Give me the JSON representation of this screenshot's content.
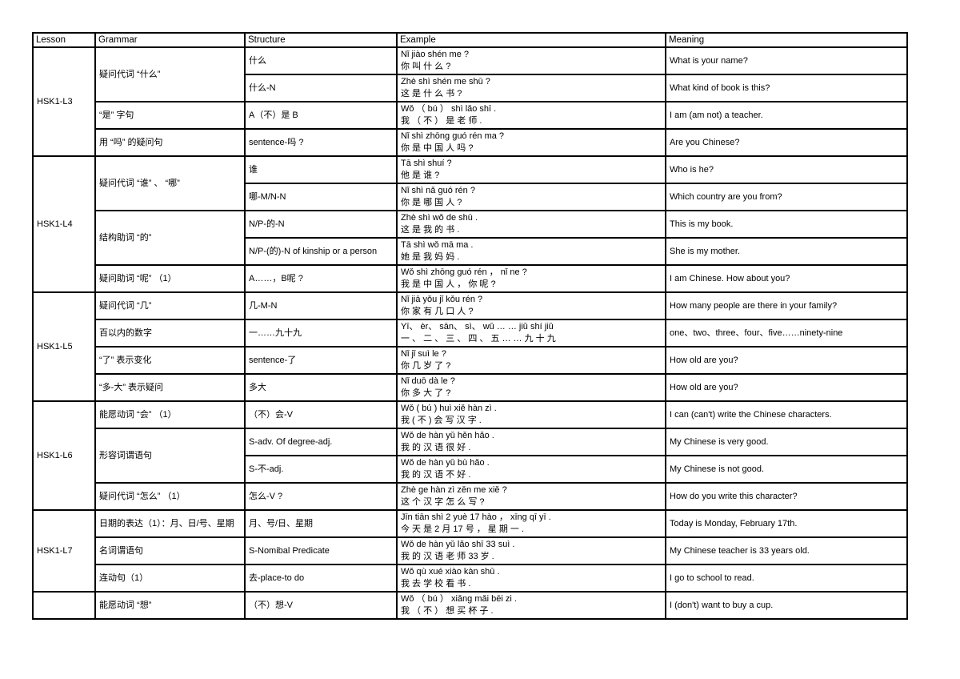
{
  "table": {
    "headers": [
      "Lesson",
      "Grammar",
      "Structure",
      "Example",
      "Meaning"
    ],
    "groups": [
      {
        "lesson": "HSK1-L3",
        "rows": [
          {
            "grammar": "疑问代词 “什么”",
            "grammar_rowspan": 2,
            "structure": "什么",
            "example_pinyin": "Nǐ jiào shén me ?",
            "example_cn": "你 叫  什 么 ?",
            "meaning": "What is your name?"
          },
          {
            "structure": "什么-N",
            "example_pinyin": "Zhè shì shén me shū ?",
            "example_cn": "这 是 什 么 书 ?",
            "meaning": "What kind of book is this?"
          },
          {
            "grammar": "“是” 字句",
            "structure": "A（不）是 B",
            "example_pinyin": "Wǒ （ bú ） shì lǎo shī .",
            "example_cn": "我 （ 不 ） 是 老 师 .",
            "meaning": "I am (am not) a teacher."
          },
          {
            "grammar": "用 “吗” 的疑问句",
            "structure": "sentence-吗 ?",
            "example_pinyin": "Nǐ shì zhōng guó rén ma ?",
            "example_cn": "你 是 中  国 人 吗 ?",
            "meaning": "Are you Chinese?"
          }
        ]
      },
      {
        "lesson": "HSK1-L4",
        "rows": [
          {
            "grammar": "疑问代词 “谁” 、 “哪”",
            "grammar_rowspan": 2,
            "structure": "谁",
            "example_pinyin": "Tā shì shuí ?",
            "example_cn": "他 是 谁  ?",
            "meaning": "Who is he?"
          },
          {
            "structure": "哪-M/N-N",
            "example_pinyin": "Nǐ shì nǎ guó rén ?",
            "example_cn": "你 是 哪 国 人  ?",
            "meaning": "Which country are you from?"
          },
          {
            "grammar": "结构助词 “的”",
            "grammar_rowspan": 2,
            "structure": "N/P-的-N",
            "example_pinyin": "Zhè shì wǒ de shū .",
            "example_cn": "这 是 我 的 书 .",
            "meaning": "This is my book."
          },
          {
            "structure": "N/P-(的)-N of kinship or a person",
            "example_pinyin": "Tā shì wǒ mā ma .",
            "example_cn": "她 是 我 妈 妈 .",
            "meaning": "She is my mother."
          },
          {
            "grammar": "疑问助词 “呢” （1）",
            "structure": "A……，B呢 ?",
            "example_pinyin": "Wǒ shì zhōng guó rén ， nǐ ne ?",
            "example_cn": "我 是 中  国 人 ， 你 呢 ?",
            "meaning": "I am Chinese. How about you?"
          }
        ]
      },
      {
        "lesson": "HSK1-L5",
        "rows": [
          {
            "grammar": "疑问代词 “几”",
            "structure": "几-M-N",
            "example_pinyin": "Nǐ jiā yǒu jǐ kǒu rén ?",
            "example_cn": "你 家 有 几 口 人 ?",
            "meaning": "How many people are there in your family?"
          },
          {
            "grammar": "百以内的数字",
            "structure": "一……九十九",
            "example_pinyin": "Yī、 èr、 sān、 sì、 wǔ … … jiǔ shí jiǔ",
            "example_cn": "一 、 二 、 三 、 四 、 五 … … 九 十 九",
            "meaning": "one、two、three、four、five……ninety-nine"
          },
          {
            "grammar": "“了” 表示变化",
            "structure": "sentence-了",
            "example_pinyin": "Nǐ jǐ suì le ?",
            "example_cn": "你 几 岁 了 ?",
            "meaning": "How old are you?"
          },
          {
            "grammar": "“多-大” 表示疑问",
            "structure": "多大",
            "example_pinyin": "Nǐ duō dà le ?",
            "example_cn": "你 多 大 了 ?",
            "meaning": "How old are you?"
          }
        ]
      },
      {
        "lesson": "HSK1-L6",
        "rows": [
          {
            "grammar": "能愿动词 “会” （1）",
            "structure": "（不）会-V",
            "example_pinyin": "Wǒ ( bú ) huì xiě hàn zì .",
            "example_cn": "我 ( 不 ) 会 写 汉 字 .",
            "meaning": "I can (can't) write the Chinese characters."
          },
          {
            "grammar": "形容词谓语句",
            "grammar_rowspan": 2,
            "structure": "S-adv. Of degree-adj.",
            "example_pinyin": "Wǒ de hàn yǔ hěn hǎo .",
            "example_cn": "我 的 汉 语 很 好 .",
            "meaning": "My Chinese is very good."
          },
          {
            "structure": "S-不-adj.",
            "example_pinyin": "Wǒ de hàn yǔ bù hǎo .",
            "example_cn": "我 的 汉 语 不 好 .",
            "meaning": "My Chinese is not good."
          },
          {
            "grammar": "疑问代词 “怎么” （1）",
            "structure": "怎么-V ?",
            "example_pinyin": "Zhè ge hàn zì zěn me xiě ?",
            "example_cn": "这 个 汉 字 怎 么 写  ?",
            "meaning": "How do you write this character?"
          }
        ]
      },
      {
        "lesson": "HSK1-L7",
        "rows": [
          {
            "grammar": "日期的表达（1）：月、日/号、星期",
            "structure": "月、号/日、星期",
            "example_pinyin": "Jīn tiān shì 2 yuè 17 hào ， xīng qī yī .",
            "example_cn": "今 天 是 2 月 17 号 ， 星 期 一 .",
            "meaning": "Today is Monday, February 17th."
          },
          {
            "grammar": "名词谓语句",
            "structure": "S-Nomibal Predicate",
            "example_pinyin": "Wǒ de hàn yǔ lǎo shī 33 suì .",
            "example_cn": "我 的 汉 语 老 师 33 岁 .",
            "meaning": "My Chinese teacher is 33 years old."
          },
          {
            "grammar": "连动句（1）",
            "structure": "去-place-to do",
            "example_pinyin": "Wǒ qù xué xiào kàn shū .",
            "example_cn": "我 去 学 校  看 书 .",
            "meaning": "I go to school to read."
          }
        ]
      },
      {
        "lesson": "",
        "rows": [
          {
            "grammar": "能愿动词 “想”",
            "structure": "（不）想-V",
            "example_pinyin": "Wǒ （ bú ） xiǎng mǎi bēi zi .",
            "example_cn": "我 （ 不 ） 想  买 杯 子 .",
            "meaning": "I (don't) want to buy a cup."
          }
        ]
      }
    ]
  }
}
